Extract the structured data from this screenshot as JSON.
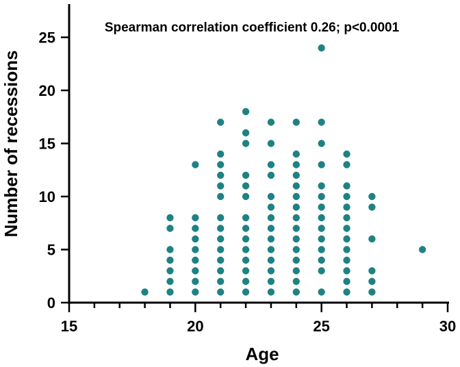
{
  "chart_data": {
    "type": "scatter",
    "title": "",
    "annotation": "Spearman correlation coefficient 0.26; p<0.0001",
    "xlabel": "Age",
    "ylabel": "Number of recessions",
    "xlim": [
      15,
      30
    ],
    "ylim": [
      0,
      28
    ],
    "xticks": [
      15,
      20,
      25,
      30
    ],
    "yticks": [
      0,
      5,
      10,
      15,
      20,
      25
    ],
    "grid": false,
    "marker_color": "#1f8282",
    "points": [
      {
        "x": 18,
        "y": 1
      },
      {
        "x": 19,
        "y": 1
      },
      {
        "x": 19,
        "y": 2
      },
      {
        "x": 19,
        "y": 3
      },
      {
        "x": 19,
        "y": 4
      },
      {
        "x": 19,
        "y": 5
      },
      {
        "x": 19,
        "y": 7
      },
      {
        "x": 19,
        "y": 8
      },
      {
        "x": 20,
        "y": 1
      },
      {
        "x": 20,
        "y": 2
      },
      {
        "x": 20,
        "y": 3
      },
      {
        "x": 20,
        "y": 4
      },
      {
        "x": 20,
        "y": 5
      },
      {
        "x": 20,
        "y": 6
      },
      {
        "x": 20,
        "y": 7
      },
      {
        "x": 20,
        "y": 8
      },
      {
        "x": 20,
        "y": 13
      },
      {
        "x": 21,
        "y": 1
      },
      {
        "x": 21,
        "y": 2
      },
      {
        "x": 21,
        "y": 3
      },
      {
        "x": 21,
        "y": 4
      },
      {
        "x": 21,
        "y": 5
      },
      {
        "x": 21,
        "y": 6
      },
      {
        "x": 21,
        "y": 7
      },
      {
        "x": 21,
        "y": 8
      },
      {
        "x": 21,
        "y": 10
      },
      {
        "x": 21,
        "y": 11
      },
      {
        "x": 21,
        "y": 12
      },
      {
        "x": 21,
        "y": 13
      },
      {
        "x": 21,
        "y": 14
      },
      {
        "x": 21,
        "y": 17
      },
      {
        "x": 22,
        "y": 1
      },
      {
        "x": 22,
        "y": 2
      },
      {
        "x": 22,
        "y": 3
      },
      {
        "x": 22,
        "y": 4
      },
      {
        "x": 22,
        "y": 5
      },
      {
        "x": 22,
        "y": 6
      },
      {
        "x": 22,
        "y": 7
      },
      {
        "x": 22,
        "y": 8
      },
      {
        "x": 22,
        "y": 10
      },
      {
        "x": 22,
        "y": 11
      },
      {
        "x": 22,
        "y": 12
      },
      {
        "x": 22,
        "y": 15
      },
      {
        "x": 22,
        "y": 16
      },
      {
        "x": 22,
        "y": 18
      },
      {
        "x": 23,
        "y": 1
      },
      {
        "x": 23,
        "y": 2
      },
      {
        "x": 23,
        "y": 3
      },
      {
        "x": 23,
        "y": 4
      },
      {
        "x": 23,
        "y": 5
      },
      {
        "x": 23,
        "y": 6
      },
      {
        "x": 23,
        "y": 7
      },
      {
        "x": 23,
        "y": 8
      },
      {
        "x": 23,
        "y": 9
      },
      {
        "x": 23,
        "y": 10
      },
      {
        "x": 23,
        "y": 12
      },
      {
        "x": 23,
        "y": 13
      },
      {
        "x": 23,
        "y": 15
      },
      {
        "x": 23,
        "y": 17
      },
      {
        "x": 24,
        "y": 1
      },
      {
        "x": 24,
        "y": 2
      },
      {
        "x": 24,
        "y": 3
      },
      {
        "x": 24,
        "y": 4
      },
      {
        "x": 24,
        "y": 5
      },
      {
        "x": 24,
        "y": 6
      },
      {
        "x": 24,
        "y": 7
      },
      {
        "x": 24,
        "y": 8
      },
      {
        "x": 24,
        "y": 9
      },
      {
        "x": 24,
        "y": 10
      },
      {
        "x": 24,
        "y": 11
      },
      {
        "x": 24,
        "y": 12
      },
      {
        "x": 24,
        "y": 13
      },
      {
        "x": 24,
        "y": 14
      },
      {
        "x": 24,
        "y": 17
      },
      {
        "x": 25,
        "y": 1
      },
      {
        "x": 25,
        "y": 3
      },
      {
        "x": 25,
        "y": 4
      },
      {
        "x": 25,
        "y": 5
      },
      {
        "x": 25,
        "y": 6
      },
      {
        "x": 25,
        "y": 7
      },
      {
        "x": 25,
        "y": 8
      },
      {
        "x": 25,
        "y": 9
      },
      {
        "x": 25,
        "y": 10
      },
      {
        "x": 25,
        "y": 11
      },
      {
        "x": 25,
        "y": 13
      },
      {
        "x": 25,
        "y": 15
      },
      {
        "x": 25,
        "y": 17
      },
      {
        "x": 25,
        "y": 24
      },
      {
        "x": 26,
        "y": 1
      },
      {
        "x": 26,
        "y": 2
      },
      {
        "x": 26,
        "y": 3
      },
      {
        "x": 26,
        "y": 4
      },
      {
        "x": 26,
        "y": 5
      },
      {
        "x": 26,
        "y": 6
      },
      {
        "x": 26,
        "y": 7
      },
      {
        "x": 26,
        "y": 8
      },
      {
        "x": 26,
        "y": 9
      },
      {
        "x": 26,
        "y": 10
      },
      {
        "x": 26,
        "y": 11
      },
      {
        "x": 26,
        "y": 13
      },
      {
        "x": 26,
        "y": 14
      },
      {
        "x": 27,
        "y": 1
      },
      {
        "x": 27,
        "y": 2
      },
      {
        "x": 27,
        "y": 3
      },
      {
        "x": 27,
        "y": 6
      },
      {
        "x": 27,
        "y": 9
      },
      {
        "x": 27,
        "y": 10
      },
      {
        "x": 29,
        "y": 5
      }
    ]
  }
}
